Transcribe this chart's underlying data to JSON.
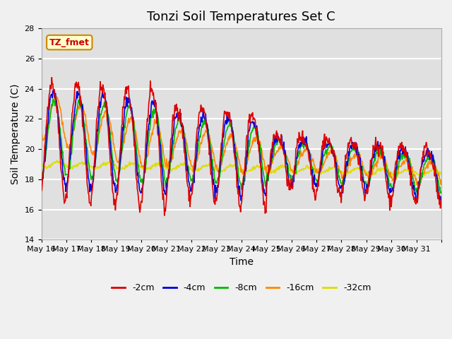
{
  "title": "Tonzi Soil Temperatures Set C",
  "xlabel": "Time",
  "ylabel": "Soil Temperature (C)",
  "ylim": [
    14,
    28
  ],
  "yticks": [
    14,
    16,
    18,
    20,
    22,
    24,
    26,
    28
  ],
  "x_labels": [
    "May 16",
    "May 17",
    "May 18",
    "May 19",
    "May 20",
    "May 21",
    "May 22",
    "May 23",
    "May 24",
    "May 25",
    "May 26",
    "May 27",
    "May 28",
    "May 29",
    "May 30",
    "May 31",
    ""
  ],
  "annotation_text": "TZ_fmet",
  "annotation_color": "#cc0000",
  "annotation_bg": "#ffffcc",
  "annotation_border": "#cc8800",
  "line_colors": [
    "#dd0000",
    "#0000dd",
    "#00bb00",
    "#ff8800",
    "#dddd00"
  ],
  "line_labels": [
    "-2cm",
    "-4cm",
    "-8cm",
    "-16cm",
    "-32cm"
  ],
  "fig_bg": "#f0f0f0",
  "plot_bg": "#e0e0e0",
  "grid_color": "#ffffff",
  "title_fontsize": 13,
  "axis_fontsize": 10,
  "tick_fontsize": 8
}
